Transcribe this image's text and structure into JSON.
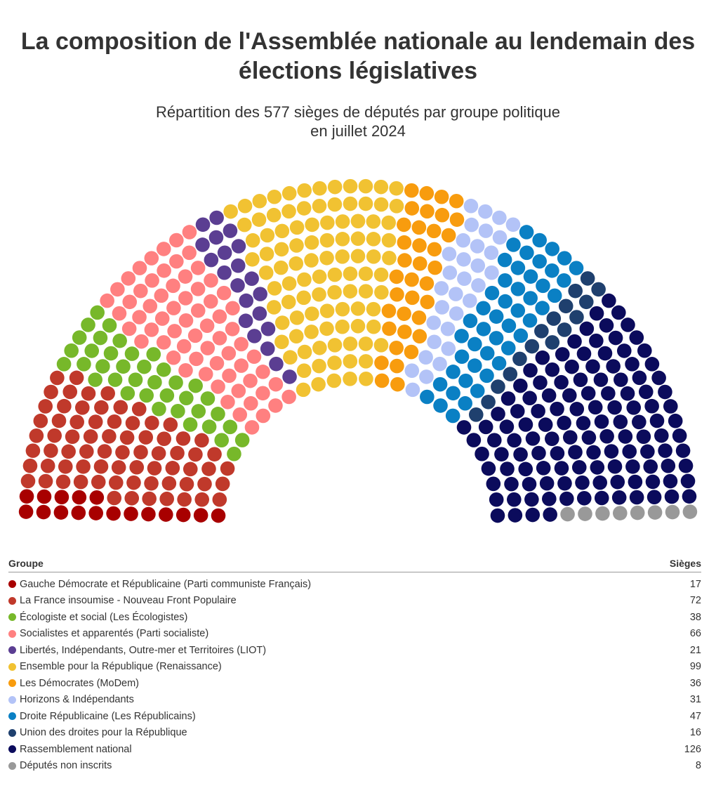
{
  "title": "La composition de l'Assemblée nationale au lendemain des élections législatives",
  "subtitle_line1": "Répartition des 577 sièges de députés par groupe politique",
  "subtitle_line2": "en juillet 2024",
  "chart_data": {
    "type": "parliament",
    "total": 577,
    "legend_header": {
      "group": "Groupe",
      "seats": "Sièges"
    },
    "series": [
      {
        "name": "Gauche Démocrate et Républicaine (Parti communiste Français)",
        "value": 17,
        "color": "#a80000"
      },
      {
        "name": "La France insoumise - Nouveau Front Populaire",
        "value": 72,
        "color": "#c0392b"
      },
      {
        "name": "Écologiste et social (Les Écologistes)",
        "value": 38,
        "color": "#77b82a"
      },
      {
        "name": "Socialistes et apparentés (Parti socialiste)",
        "value": 66,
        "color": "#ff8080"
      },
      {
        "name": "Libertés, Indépendants, Outre-mer et Territoires (LIOT)",
        "value": 21,
        "color": "#5b3e92"
      },
      {
        "name": "Ensemble pour la République (Renaissance)",
        "value": 99,
        "color": "#f1c232"
      },
      {
        "name": "Les Démocrates (MoDem)",
        "value": 36,
        "color": "#f89c0e"
      },
      {
        "name": "Horizons & Indépendants",
        "value": 31,
        "color": "#b3c3f7"
      },
      {
        "name": "Droite Républicaine (Les Républicains)",
        "value": 47,
        "color": "#0a80c4"
      },
      {
        "name": "Union des droites pour la République",
        "value": 16,
        "color": "#1f406e"
      },
      {
        "name": "Rassemblement national",
        "value": 126,
        "color": "#0b0b5c"
      },
      {
        "name": "Députés non inscrits",
        "value": 8,
        "color": "#999999"
      }
    ]
  }
}
